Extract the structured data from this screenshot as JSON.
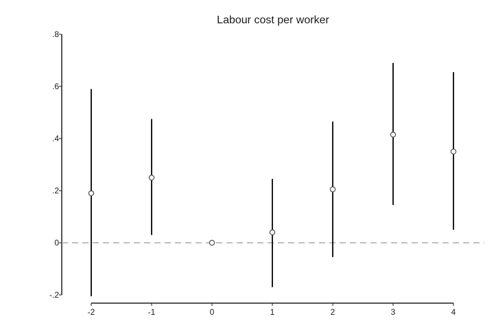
{
  "chart_data": {
    "type": "scatter",
    "title": "Labour cost per worker",
    "xlabel": "",
    "ylabel": "",
    "x": [
      -2,
      -1,
      0,
      1,
      2,
      3,
      4
    ],
    "x_tick_labels": [
      "-2",
      "-1",
      "0",
      "1",
      "2",
      "3",
      "4"
    ],
    "y_ticks": [
      -0.2,
      0,
      0.2,
      0.4,
      0.6,
      0.8
    ],
    "y_tick_labels": [
      "-.2",
      "0",
      ".2",
      ".4",
      ".6",
      ".8"
    ],
    "ylim": [
      -0.2,
      0.8
    ],
    "series": [
      {
        "estimate": [
          0.19,
          0.25,
          0.0,
          0.04,
          0.205,
          0.415,
          0.35
        ],
        "ci_low": [
          -0.205,
          0.03,
          0.0,
          -0.17,
          -0.055,
          0.145,
          0.05
        ],
        "ci_high": [
          0.59,
          0.475,
          0.0,
          0.245,
          0.465,
          0.69,
          0.655
        ]
      }
    ],
    "reference_line_y": 0,
    "grid": false,
    "legend": "none",
    "colors": {
      "marker": "#555555",
      "ci": "#1a1a1a",
      "reference_line": "#aaaaaa",
      "axis": "#1a1a1a"
    }
  }
}
